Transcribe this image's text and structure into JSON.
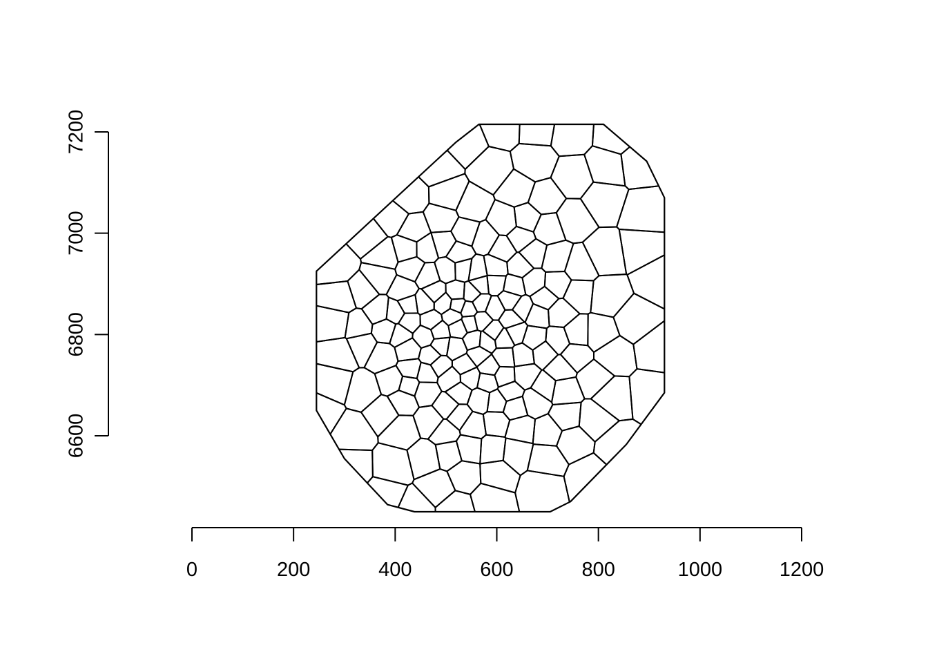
{
  "chart_data": {
    "type": "voronoi_tessellation",
    "title": "",
    "xlabel": "",
    "ylabel": "",
    "xlim": [
      0,
      1200
    ],
    "ylim": [
      6600,
      7200
    ],
    "x_ticks": [
      0,
      200,
      400,
      600,
      800,
      1000,
      1200
    ],
    "y_ticks": [
      6600,
      6800,
      7000,
      7200
    ],
    "x_tick_labels": [
      "0",
      "200",
      "400",
      "600",
      "800",
      "1000",
      "1200"
    ],
    "y_tick_labels": [
      "6600",
      "6800",
      "7000",
      "7200"
    ],
    "boundary_window": [
      [
        438,
        6450
      ],
      [
        705,
        6450
      ],
      [
        745,
        6470
      ],
      [
        855,
        6583
      ],
      [
        930,
        6685
      ],
      [
        930,
        7070
      ],
      [
        895,
        7142
      ],
      [
        810,
        7215
      ],
      [
        565,
        7215
      ],
      [
        520,
        7180
      ],
      [
        245,
        6925
      ],
      [
        245,
        6650
      ],
      [
        300,
        6555
      ],
      [
        385,
        6464
      ]
    ],
    "grid": false,
    "legend": "none"
  }
}
